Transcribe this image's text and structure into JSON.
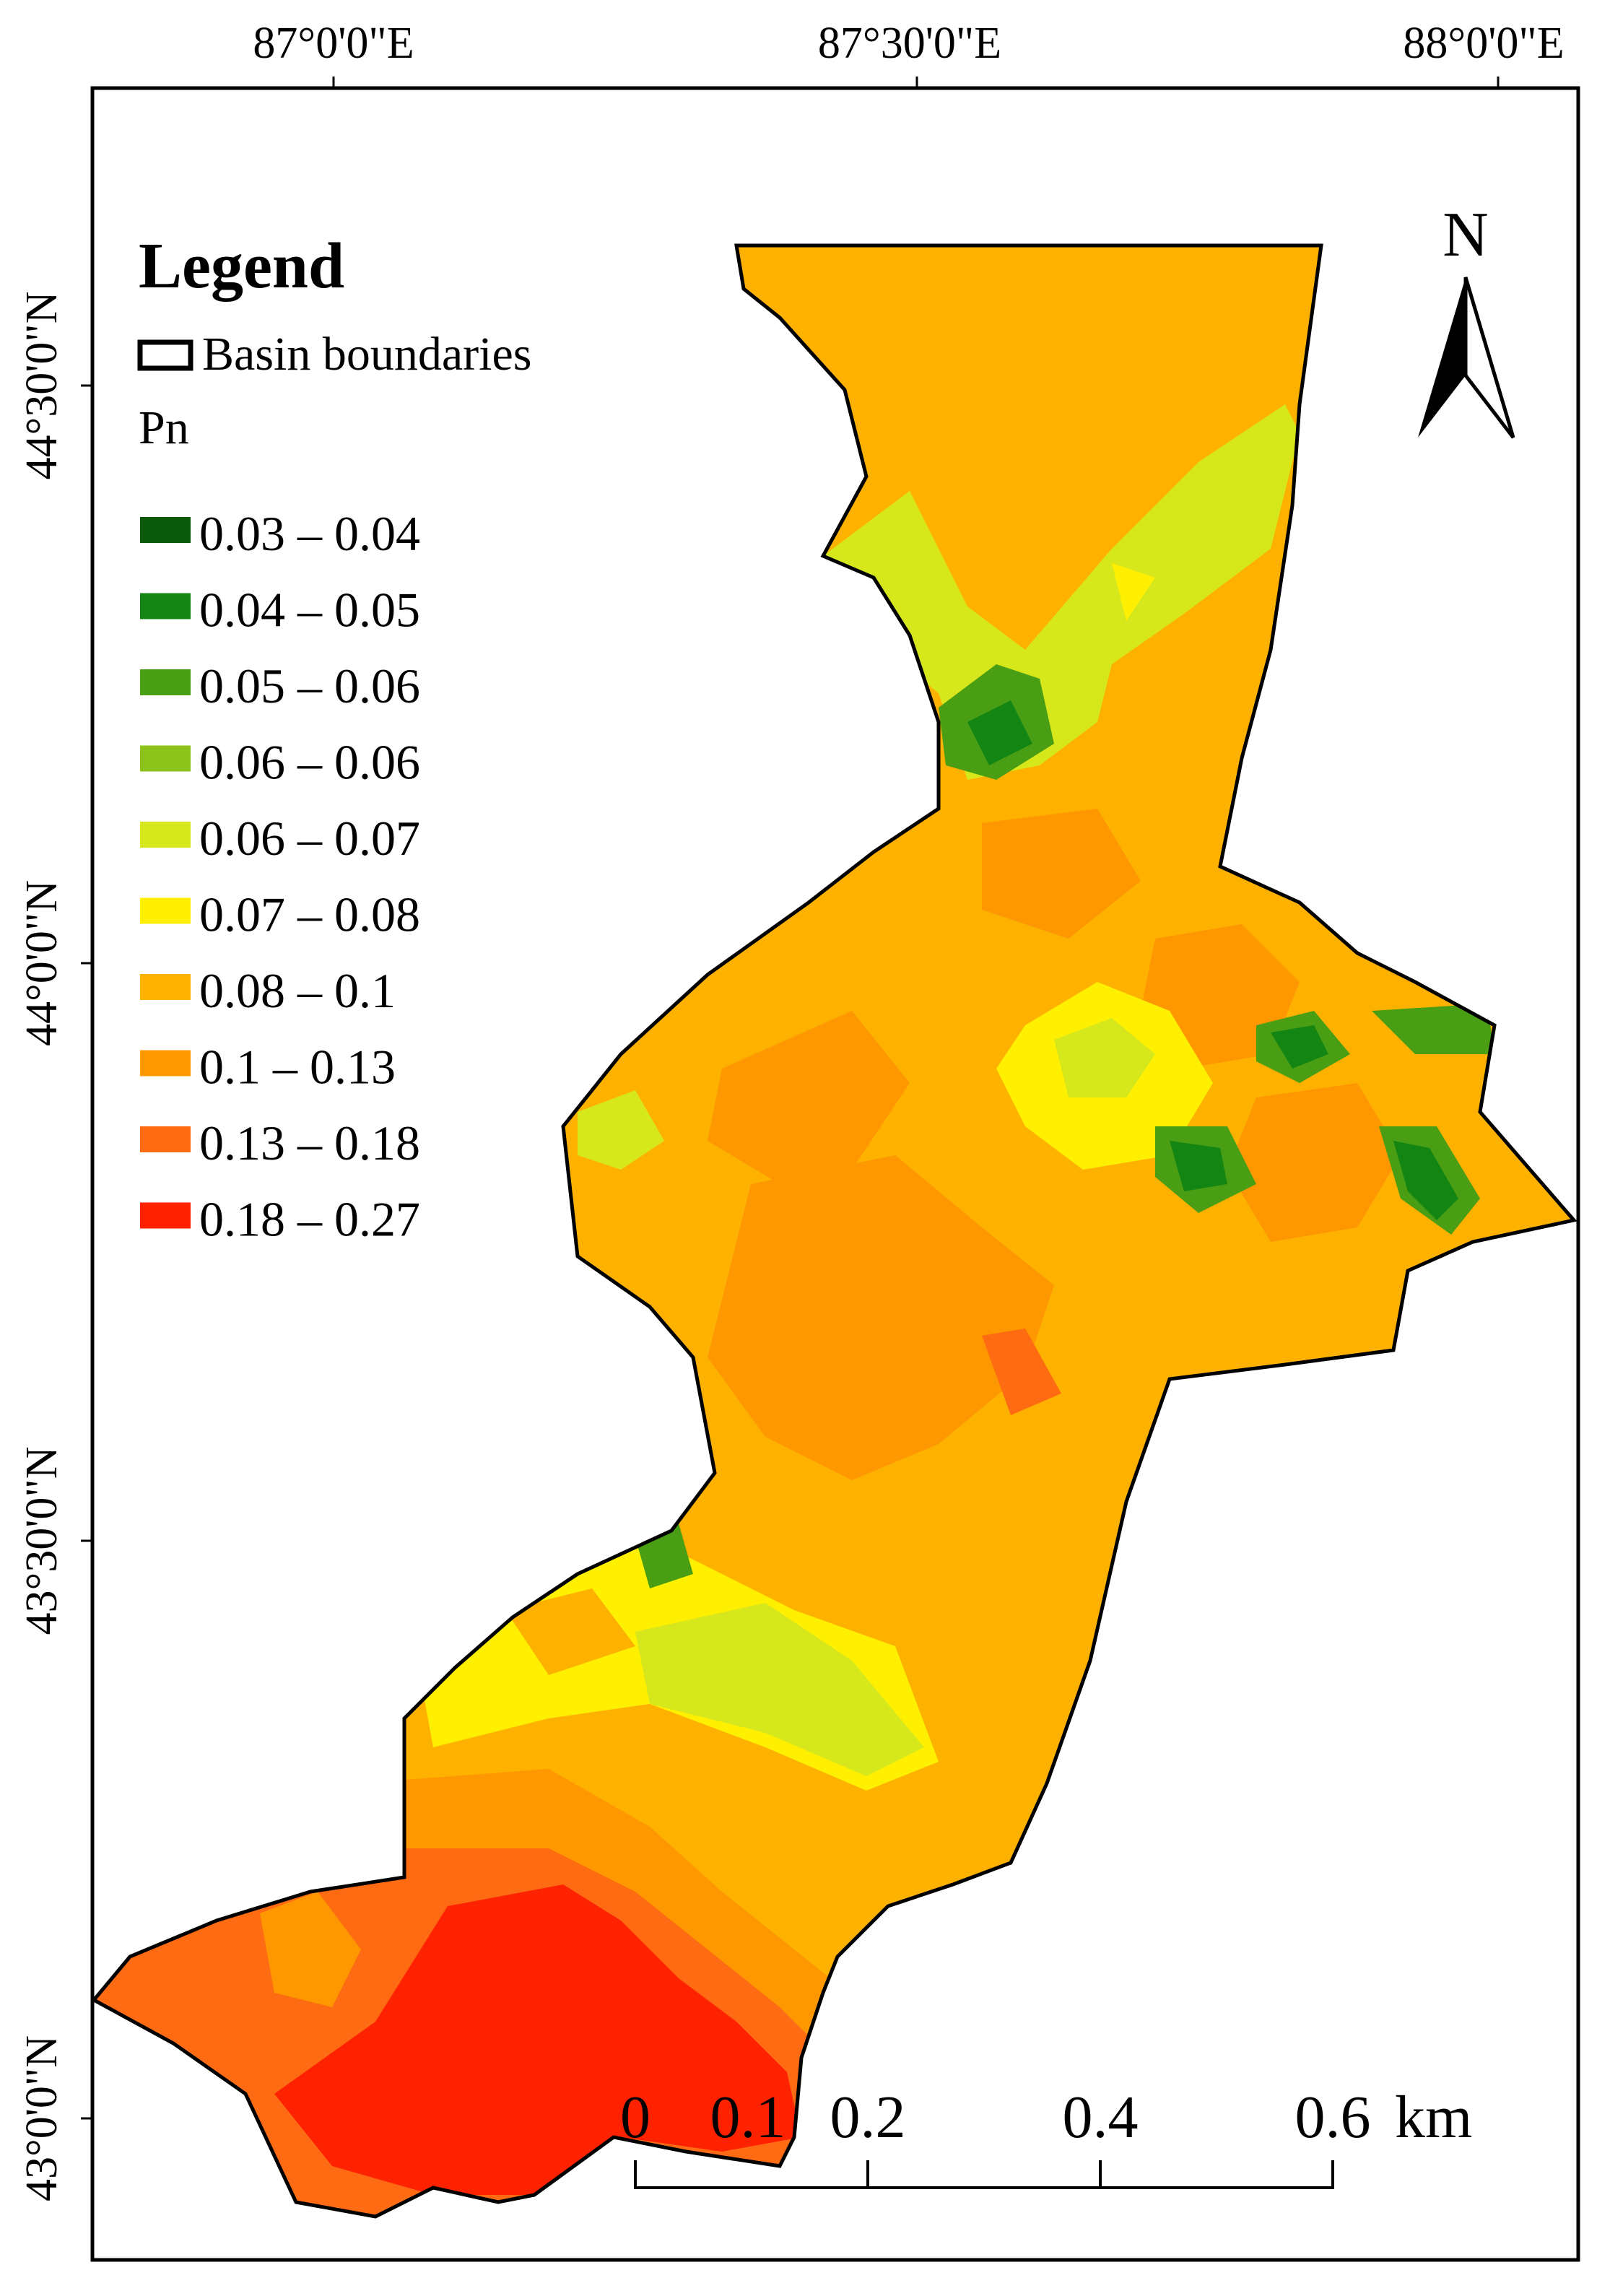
{
  "graticule": {
    "longitudes": [
      "87°0'0\"E",
      "87°30'0\"E",
      "88°0'0\"E"
    ],
    "latitudes": [
      "44°30'0\"N",
      "44°0'0\"N",
      "43°30'0\"N",
      "43°0'0\"N"
    ]
  },
  "legend": {
    "title": "Legend",
    "boundary_label": "Basin boundaries",
    "variable": "Pn",
    "classes": [
      {
        "label": "0.03 – 0.04",
        "color": "#0b5a0b"
      },
      {
        "label": "0.04 – 0.05",
        "color": "#128512"
      },
      {
        "label": "0.05 – 0.06",
        "color": "#4a9e14"
      },
      {
        "label": "0.06 – 0.06",
        "color": "#8cc21a"
      },
      {
        "label": "0.06 – 0.07",
        "color": "#d6e81c"
      },
      {
        "label": "0.07 – 0.08",
        "color": "#ffef00"
      },
      {
        "label": "0.08 – 0.1",
        "color": "#ffb100"
      },
      {
        "label": "0.1 – 0.13",
        "color": "#ff9800"
      },
      {
        "label": "0.13 – 0.18",
        "color": "#ff6b12"
      },
      {
        "label": "0.18 – 0.27",
        "color": "#ff2200"
      }
    ]
  },
  "north_arrow": {
    "label": "N"
  },
  "scale_bar": {
    "ticks": [
      "0",
      "0.1",
      "0.2",
      "0.4",
      "0.6"
    ],
    "unit": "km"
  }
}
